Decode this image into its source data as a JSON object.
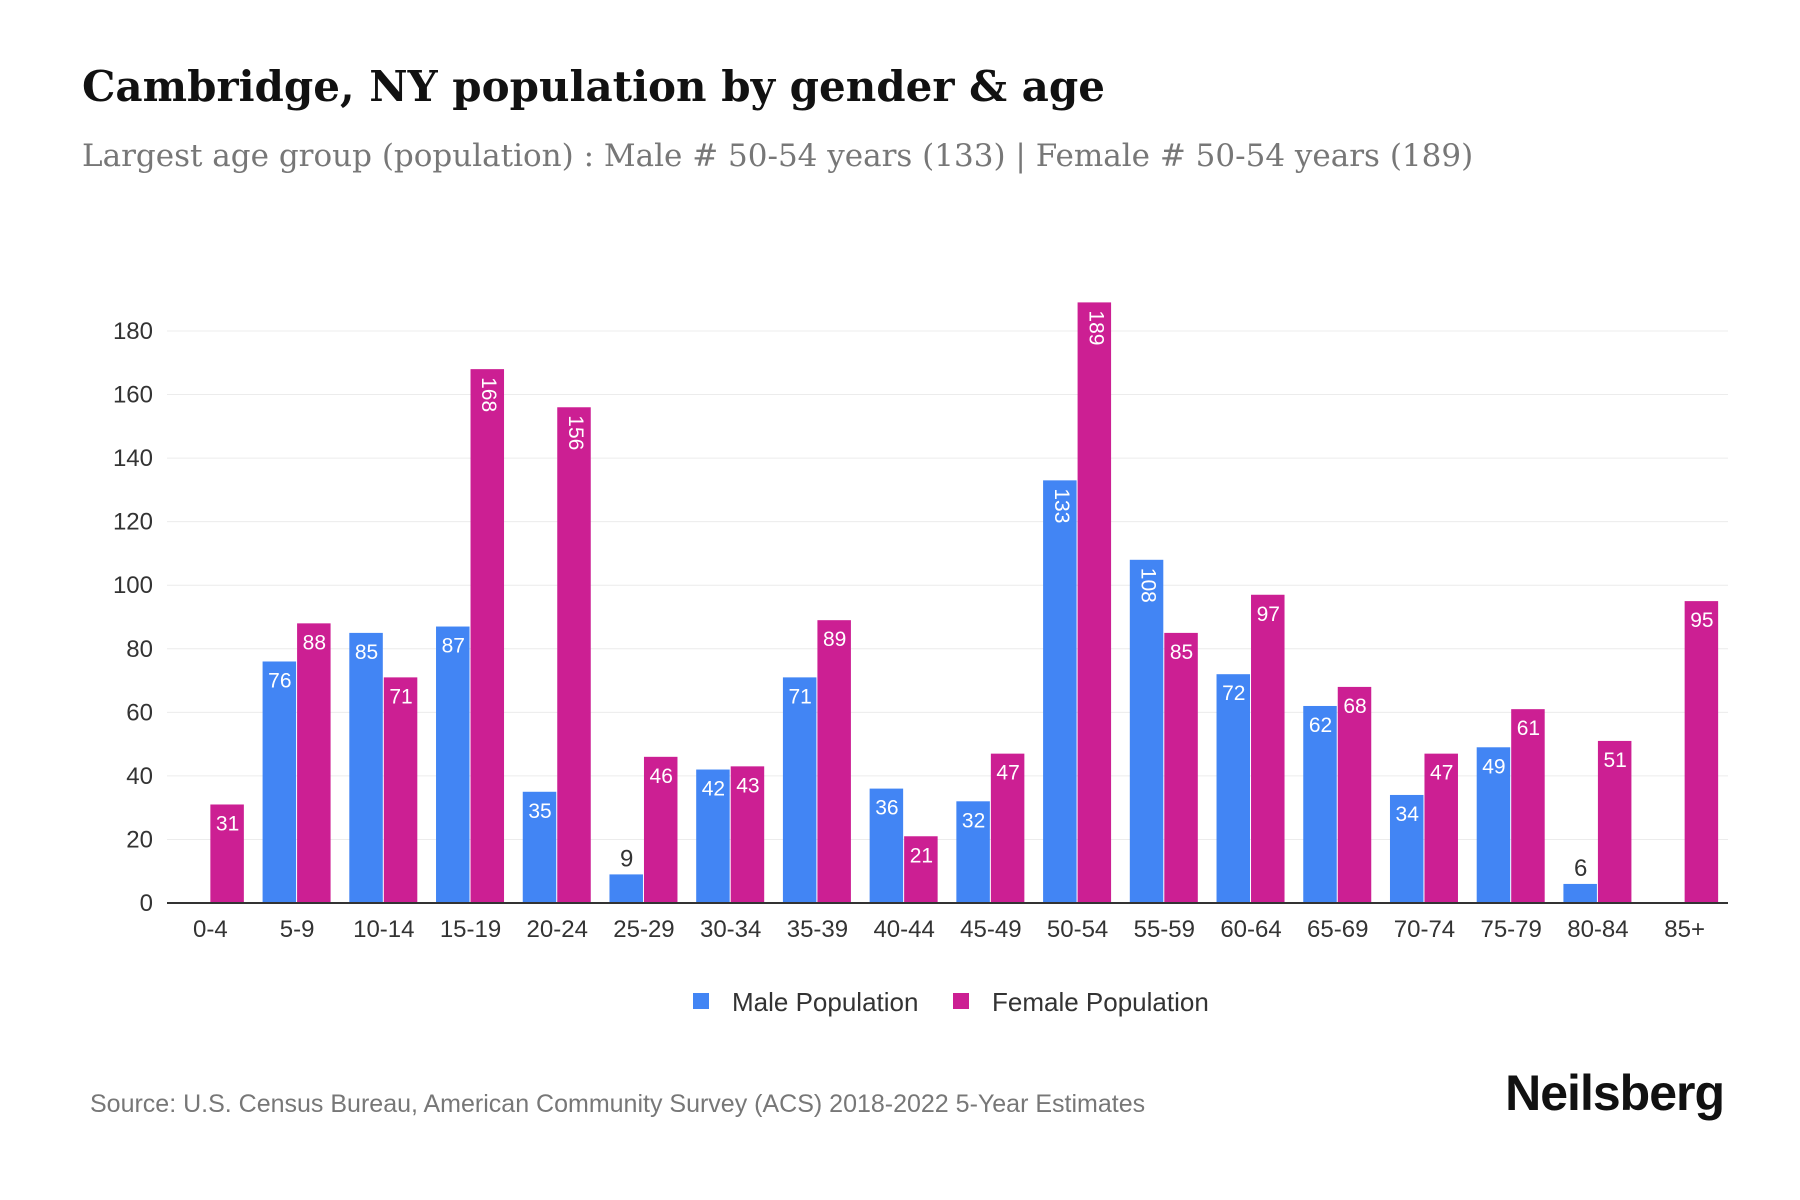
{
  "title": "Cambridge, NY population by gender & age",
  "subtitle": "Largest age group (population) : Male # 50-54 years (133) | Female # 50-54 years (189)",
  "source": "Source: U.S. Census Bureau, American Community Survey (ACS) 2018-2022 5-Year Estimates",
  "logo": "Neilsberg",
  "colors": {
    "male": "#4285f4",
    "female": "#cc1f93"
  },
  "chart_data": {
    "type": "bar",
    "title": "Cambridge, NY population by gender & age",
    "xlabel": "",
    "ylabel": "",
    "ylim": [
      0,
      180
    ],
    "yticks": [
      0,
      20,
      40,
      60,
      80,
      100,
      120,
      140,
      160,
      180
    ],
    "grid": true,
    "legend_position": "bottom",
    "categories": [
      "0-4",
      "5-9",
      "10-14",
      "15-19",
      "20-24",
      "25-29",
      "30-34",
      "35-39",
      "40-44",
      "45-49",
      "50-54",
      "55-59",
      "60-64",
      "65-69",
      "70-74",
      "75-79",
      "80-84",
      "85+"
    ],
    "series": [
      {
        "name": "Male Population",
        "values": [
          0,
          76,
          85,
          87,
          35,
          9,
          42,
          71,
          36,
          32,
          133,
          108,
          72,
          62,
          34,
          49,
          6,
          0
        ]
      },
      {
        "name": "Female Population",
        "values": [
          31,
          88,
          71,
          168,
          156,
          46,
          43,
          89,
          21,
          47,
          189,
          85,
          97,
          68,
          47,
          61,
          51,
          95
        ]
      }
    ]
  }
}
